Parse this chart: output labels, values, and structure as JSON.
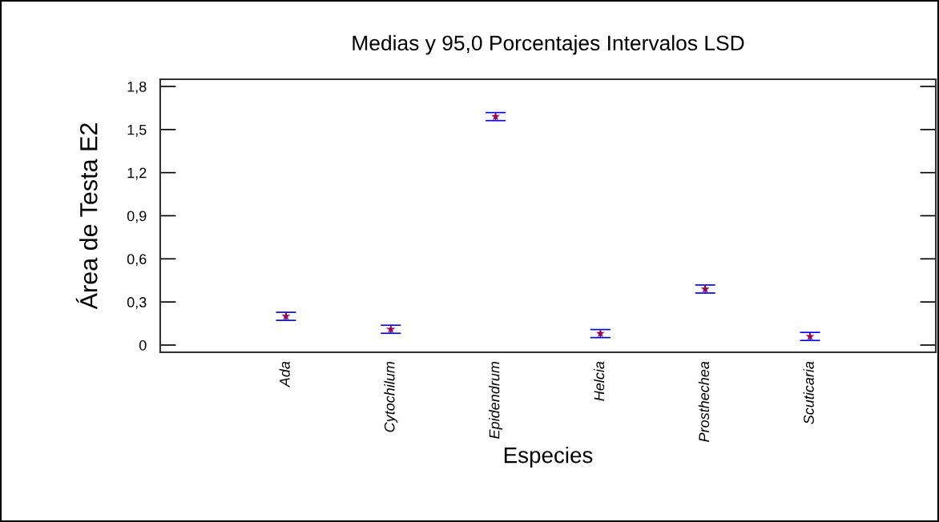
{
  "chart_data": {
    "type": "scatter",
    "title": "Medias y 95,0 Porcentajes Intervalos LSD",
    "xlabel": "Especies",
    "ylabel": "Área de Testa E2",
    "categories": [
      "Ada",
      "Cytochilum",
      "Epidendrum",
      "Helcia",
      "Prosthechea",
      "Scuticaria"
    ],
    "series": [
      {
        "color": "#a0004a",
        "values": [
          0.2,
          0.11,
          1.59,
          0.08,
          0.39,
          0.06
        ],
        "errors": [
          0.028,
          0.028,
          0.028,
          0.028,
          0.028,
          0.028
        ]
      }
    ],
    "marker": "star",
    "ylim": [
      -0.05,
      1.85
    ],
    "yticks": [
      {
        "value": 0,
        "label": "0"
      },
      {
        "value": 0.3,
        "label": "0,3"
      },
      {
        "value": 0.6,
        "label": "0,6"
      },
      {
        "value": 0.9,
        "label": "0,9"
      },
      {
        "value": 1.2,
        "label": "1,2"
      },
      {
        "value": 1.5,
        "label": "1,5"
      },
      {
        "value": 1.8,
        "label": "1,8"
      }
    ]
  }
}
